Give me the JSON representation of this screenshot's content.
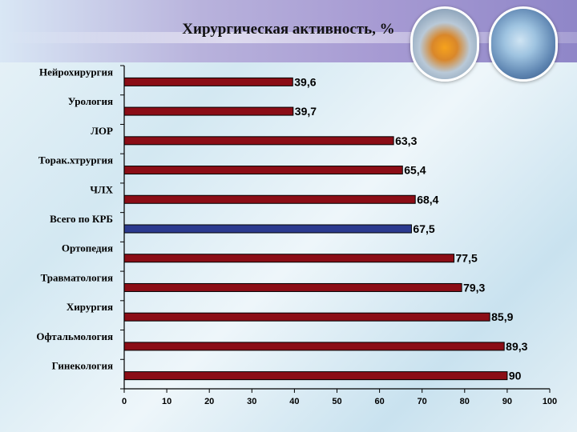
{
  "chart_data": {
    "type": "bar",
    "orientation": "horizontal",
    "title": "Хирургическая активность, %",
    "categories": [
      "Нейрохирургия",
      "Урология",
      "ЛОР",
      "Торак.хтрургия",
      "ЧЛХ",
      "Всего по КРБ",
      "Ортопедия",
      "Травматология",
      "Хирургия",
      "Офтальмология",
      "Гинекология"
    ],
    "values": [
      39.6,
      39.7,
      63.3,
      65.4,
      68.4,
      67.5,
      77.5,
      79.3,
      85.9,
      89.3,
      90
    ],
    "value_labels": [
      "39,6",
      "39,7",
      "63,3",
      "65,4",
      "68,4",
      "67,5",
      "77,5",
      "79,3",
      "85,9",
      "89,3",
      "90"
    ],
    "highlight_category": "Всего по КРБ",
    "xlim": [
      0,
      100
    ],
    "x_ticks": [
      "0",
      "10",
      "20",
      "30",
      "40",
      "50",
      "60",
      "70",
      "80",
      "90",
      "100"
    ],
    "xlabel": "",
    "ylabel": "",
    "grid": false,
    "legend": "none",
    "colors": {
      "bar": "#8b0d16",
      "highlight": "#2b3a8f",
      "bar_edge": "#000000"
    }
  }
}
